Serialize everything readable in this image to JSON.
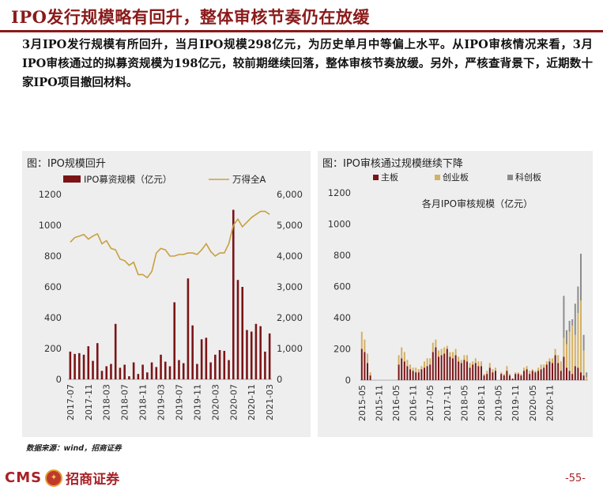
{
  "header": {
    "title": "IPO发行规模略有回升，整体审核节奏仍在放缓"
  },
  "body": {
    "paragraph": "3月IPO发行规模有所回升，当月IPO规模298亿元，为历史单月中等偏上水平。从IPO审核情况来看，3月IPO审核通过的拟募资规模为198亿元，较前期继续回落，整体审核节奏放缓。另外，严核查背景下，近期数十家IPO项目撤回材料。"
  },
  "footer": {
    "source": "数据来源：wind，招商证券",
    "logo_text": "CMS",
    "logo_cn": "招商证券",
    "page_number": "-55-"
  },
  "chart_data": [
    {
      "type": "bar",
      "title": "图：IPO规模回升",
      "legend": {
        "position": "top",
        "entries": [
          "IPO募资规模（亿元）",
          "万得全A"
        ]
      },
      "colors": {
        "bar": "#7b1416",
        "line": "#c8a040"
      },
      "x_tick_labels": [
        "2017-07",
        "2017-11",
        "2018-03",
        "2018-07",
        "2018-11",
        "2019-03",
        "2019-07",
        "2019-11",
        "2020-03",
        "2020-07",
        "2020-11",
        "2021-03"
      ],
      "ylim_left": [
        0,
        1200
      ],
      "yticks_left": [
        0,
        200,
        400,
        600,
        800,
        1000,
        1200
      ],
      "ylim_right": [
        0,
        6000
      ],
      "yticks_right": [
        "0",
        "1,000",
        "2,000",
        "3,000",
        "4,000",
        "5,000",
        "6,000"
      ],
      "months": [
        "2017-07",
        "2017-08",
        "2017-09",
        "2017-10",
        "2017-11",
        "2017-12",
        "2018-01",
        "2018-02",
        "2018-03",
        "2018-04",
        "2018-05",
        "2018-06",
        "2018-07",
        "2018-08",
        "2018-09",
        "2018-10",
        "2018-11",
        "2018-12",
        "2019-01",
        "2019-02",
        "2019-03",
        "2019-04",
        "2019-05",
        "2019-06",
        "2019-07",
        "2019-08",
        "2019-09",
        "2019-10",
        "2019-11",
        "2019-12",
        "2020-01",
        "2020-02",
        "2020-03",
        "2020-04",
        "2020-05",
        "2020-06",
        "2020-07",
        "2020-08",
        "2020-09",
        "2020-10",
        "2020-11",
        "2020-12",
        "2021-01",
        "2021-02",
        "2021-03"
      ],
      "series": [
        {
          "name": "IPO募资规模（亿元）",
          "kind": "bar",
          "axis": "left",
          "values": [
            180,
            165,
            170,
            160,
            215,
            120,
            235,
            55,
            85,
            100,
            360,
            75,
            95,
            20,
            110,
            35,
            95,
            45,
            110,
            80,
            160,
            115,
            85,
            500,
            125,
            105,
            655,
            350,
            100,
            260,
            270,
            110,
            160,
            190,
            185,
            125,
            1100,
            645,
            600,
            320,
            310,
            360,
            345,
            180,
            298
          ]
        },
        {
          "name": "万得全A",
          "kind": "line",
          "axis": "right",
          "values": [
            4450,
            4600,
            4650,
            4700,
            4550,
            4650,
            4720,
            4400,
            4500,
            4250,
            4200,
            3900,
            3850,
            3700,
            3800,
            3400,
            3400,
            3300,
            3500,
            4100,
            4250,
            4200,
            4000,
            4000,
            4050,
            4050,
            4100,
            4100,
            4050,
            4200,
            4400,
            4150,
            4000,
            4100,
            4100,
            4400,
            5000,
            5200,
            4950,
            5100,
            5250,
            5350,
            5450,
            5450,
            5350
          ]
        }
      ]
    },
    {
      "type": "bar",
      "title": "图：IPO审核通过规模继续下降",
      "subtitle": "各月IPO审核规模（亿元）",
      "legend": {
        "position": "top-left",
        "entries": [
          "主板",
          "创业板",
          "科创板"
        ]
      },
      "colors": {
        "主板": "#7b1416",
        "创业板": "#d4b060",
        "科创板": "#8c8c8c"
      },
      "stacked": true,
      "x_tick_labels": [
        "2015-05",
        "2015-11",
        "2016-05",
        "2016-11",
        "2017-05",
        "2017-11",
        "2018-05",
        "2018-11",
        "2019-05",
        "2019-11",
        "2020-05",
        "2020-11"
      ],
      "ylim": [
        0,
        1200
      ],
      "yticks": [
        0,
        200,
        400,
        600,
        800,
        1000,
        1200
      ],
      "months_start": "2015-05",
      "series": [
        {
          "name": "主板",
          "values": [
            200,
            180,
            110,
            30,
            0,
            0,
            0,
            0,
            0,
            0,
            0,
            0,
            0,
            100,
            140,
            120,
            90,
            70,
            60,
            50,
            50,
            70,
            80,
            90,
            100,
            180,
            210,
            150,
            160,
            170,
            200,
            150,
            140,
            160,
            120,
            110,
            130,
            120,
            80,
            100,
            110,
            90,
            90,
            30,
            40,
            80,
            50,
            60,
            0,
            40,
            30,
            60,
            30,
            10,
            40,
            40,
            30,
            60,
            70,
            40,
            60,
            50,
            60,
            70,
            80,
            100,
            120,
            110,
            160,
            110,
            60,
            150,
            80,
            60,
            40,
            90,
            80,
            50,
            30,
            0
          ]
        },
        {
          "name": "创业板",
          "values": [
            110,
            80,
            60,
            20,
            0,
            0,
            0,
            0,
            0,
            0,
            0,
            0,
            0,
            60,
            70,
            60,
            40,
            30,
            20,
            30,
            20,
            20,
            40,
            50,
            40,
            60,
            50,
            40,
            40,
            40,
            20,
            30,
            40,
            40,
            30,
            20,
            30,
            40,
            30,
            20,
            30,
            30,
            30,
            10,
            20,
            30,
            20,
            20,
            0,
            10,
            10,
            30,
            10,
            0,
            10,
            10,
            10,
            20,
            20,
            20,
            10,
            10,
            20,
            30,
            20,
            20,
            20,
            30,
            40,
            50,
            60,
            120,
            150,
            250,
            310,
            200,
            350,
            460,
            160,
            20
          ]
        },
        {
          "name": "科创板",
          "values": [
            0,
            0,
            0,
            0,
            0,
            0,
            0,
            0,
            0,
            0,
            0,
            0,
            0,
            0,
            0,
            0,
            0,
            0,
            0,
            0,
            0,
            0,
            0,
            0,
            0,
            0,
            0,
            0,
            0,
            0,
            0,
            0,
            0,
            0,
            0,
            0,
            0,
            0,
            0,
            0,
            0,
            0,
            0,
            0,
            0,
            0,
            0,
            0,
            0,
            0,
            0,
            0,
            0,
            0,
            0,
            0,
            0,
            0,
            0,
            0,
            0,
            0,
            0,
            0,
            0,
            0,
            0,
            0,
            0,
            0,
            0,
            270,
            90,
            70,
            40,
            200,
            170,
            300,
            100,
            30
          ]
        }
      ]
    }
  ]
}
